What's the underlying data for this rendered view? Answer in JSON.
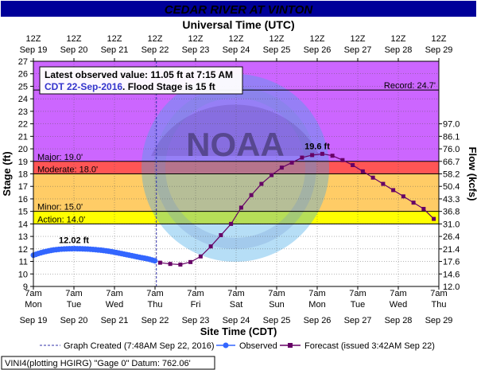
{
  "chart_data": {
    "type": "line",
    "title": "CEDAR RIVER AT VINTON",
    "top_axis_title": "Universal Time (UTC)",
    "xlabel": "Site Time (CDT)",
    "ylabel": "Stage (ft)",
    "y2label": "Flow (kcfs)",
    "ylim": [
      9,
      27
    ],
    "y_ticks": [
      9,
      10,
      11,
      12,
      13,
      14,
      15,
      16,
      17,
      18,
      19,
      20,
      21,
      22,
      23,
      24,
      25,
      26,
      27
    ],
    "y2_ticks": [
      {
        "stage": 10,
        "label": "14.6"
      },
      {
        "stage": 11,
        "label": "17.6"
      },
      {
        "stage": 12,
        "label": "21.4"
      },
      {
        "stage": 13,
        "label": "26.4"
      },
      {
        "stage": 14,
        "label": "31.0"
      },
      {
        "stage": 15,
        "label": "36.8"
      },
      {
        "stage": 16,
        "label": "43.3"
      },
      {
        "stage": 17,
        "label": "50.4"
      },
      {
        "stage": 18,
        "label": "58.2"
      },
      {
        "stage": 19,
        "label": "66.7"
      },
      {
        "stage": 20,
        "label": "76.0"
      },
      {
        "stage": 21,
        "label": "86.1"
      },
      {
        "stage": 22,
        "label": "97.0"
      }
    ],
    "y2_bottom_label": "12.0",
    "x_range_hours": [
      0,
      240
    ],
    "x_ticks_bottom": [
      {
        "hour": 0,
        "time": "7am",
        "day": "Mon",
        "date": "Sep 19"
      },
      {
        "hour": 24,
        "time": "7am",
        "day": "Tue",
        "date": "Sep 20"
      },
      {
        "hour": 48,
        "time": "7am",
        "day": "Wed",
        "date": "Sep 21"
      },
      {
        "hour": 72,
        "time": "7am",
        "day": "Thu",
        "date": "Sep 22"
      },
      {
        "hour": 96,
        "time": "7am",
        "day": "Fri",
        "date": "Sep 23"
      },
      {
        "hour": 120,
        "time": "7am",
        "day": "Sat",
        "date": "Sep 24"
      },
      {
        "hour": 144,
        "time": "7am",
        "day": "Sun",
        "date": "Sep 25"
      },
      {
        "hour": 168,
        "time": "7am",
        "day": "Mon",
        "date": "Sep 26"
      },
      {
        "hour": 192,
        "time": "7am",
        "day": "Tue",
        "date": "Sep 27"
      },
      {
        "hour": 216,
        "time": "7am",
        "day": "Wed",
        "date": "Sep 28"
      },
      {
        "hour": 240,
        "time": "7am",
        "day": "Thu",
        "date": "Sep 29"
      }
    ],
    "x_ticks_top": [
      {
        "hour": 0,
        "time": "12Z",
        "date": "Sep 19"
      },
      {
        "hour": 24,
        "time": "12Z",
        "date": "Sep 20"
      },
      {
        "hour": 48,
        "time": "12Z",
        "date": "Sep 21"
      },
      {
        "hour": 72,
        "time": "12Z",
        "date": "Sep 22"
      },
      {
        "hour": 96,
        "time": "12Z",
        "date": "Sep 23"
      },
      {
        "hour": 120,
        "time": "12Z",
        "date": "Sep 24"
      },
      {
        "hour": 144,
        "time": "12Z",
        "date": "Sep 25"
      },
      {
        "hour": 168,
        "time": "12Z",
        "date": "Sep 26"
      },
      {
        "hour": 192,
        "time": "12Z",
        "date": "Sep 27"
      },
      {
        "hour": 216,
        "time": "12Z",
        "date": "Sep 28"
      },
      {
        "hour": 240,
        "time": "12Z",
        "date": "Sep 29"
      }
    ],
    "bands": [
      {
        "from": 9,
        "to": 14,
        "color": "#ffffff"
      },
      {
        "from": 14,
        "to": 15,
        "color": "#ffff00"
      },
      {
        "from": 15,
        "to": 18,
        "color": "#ffcc66"
      },
      {
        "from": 18,
        "to": 19,
        "color": "#ff5555"
      },
      {
        "from": 19,
        "to": 27,
        "color": "#cc66ff"
      }
    ],
    "thresholds": [
      {
        "stage": 14.0,
        "label": "Action: 14.0'"
      },
      {
        "stage": 15.0,
        "label": "Minor: 15.0'"
      },
      {
        "stage": 18.0,
        "label": "Moderate: 18.0'"
      },
      {
        "stage": 19.0,
        "label": "Major: 19.0'"
      }
    ],
    "record": {
      "stage": 24.7,
      "label": "Record: 24.7'"
    },
    "graph_created_hour": 72.8,
    "observed_max_label": "12.02 ft",
    "observed_max": {
      "hour": 24,
      "stage": 12.02
    },
    "forecast_crest_label": "19.6 ft",
    "forecast_crest": {
      "hour": 168,
      "stage": 19.6
    },
    "series": [
      {
        "name": "Observed",
        "color": "#3366ff",
        "x": [
          0,
          4,
          8,
          12,
          16,
          20,
          24,
          28,
          32,
          36,
          40,
          44,
          48,
          52,
          56,
          60,
          64,
          68,
          72
        ],
        "y": [
          11.5,
          11.68,
          11.82,
          11.92,
          11.98,
          12.01,
          12.02,
          12.01,
          11.99,
          11.95,
          11.9,
          11.83,
          11.74,
          11.63,
          11.52,
          11.41,
          11.3,
          11.2,
          11.05
        ]
      },
      {
        "name": "Forecast",
        "color": "#660066",
        "x": [
          75,
          81,
          87,
          93,
          99,
          105,
          111,
          117,
          123,
          129,
          135,
          141,
          147,
          153,
          159,
          165,
          171,
          177,
          183,
          189,
          195,
          201,
          207,
          213,
          219,
          225,
          231,
          237
        ],
        "y": [
          10.9,
          10.8,
          10.75,
          10.95,
          11.4,
          12.2,
          13.1,
          14.0,
          15.3,
          16.3,
          17.2,
          17.9,
          18.5,
          18.9,
          19.3,
          19.5,
          19.6,
          19.45,
          19.1,
          18.7,
          18.2,
          17.7,
          17.2,
          16.7,
          16.2,
          15.7,
          15.2,
          14.4
        ]
      }
    ],
    "info_box": {
      "line1": "Latest observed value: 11.05 ft at 7:15 AM",
      "line2a": "CDT 22-Sep-2016",
      "line2b": ". Flood Stage is 15 ft"
    },
    "legend": {
      "created": "Graph Created (7:48AM Sep 22, 2016)",
      "observed": "Observed",
      "forecast": "Forecast (issued 3:42AM Sep 22)"
    },
    "footer": "VINI4(plotting HGIRG) \"Gage 0\" Datum: 762.06'",
    "colors": {
      "title_bg": "#000099",
      "observed": "#3366ff",
      "forecast": "#660066",
      "info_text": "#3333cc"
    }
  }
}
